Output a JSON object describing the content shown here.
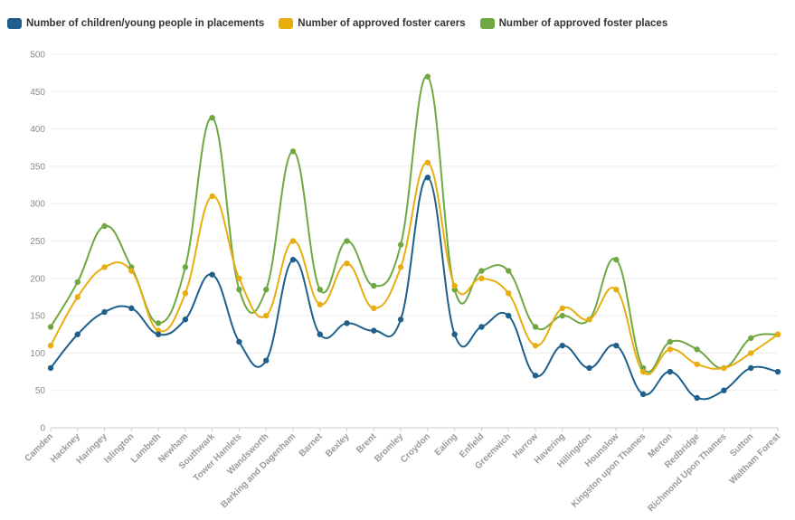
{
  "chart_data": {
    "type": "line",
    "title": "",
    "xlabel": "",
    "ylabel": "",
    "ylim": [
      0,
      500
    ],
    "yticks": [
      0,
      50,
      100,
      150,
      200,
      250,
      300,
      350,
      400,
      450,
      500
    ],
    "grid": true,
    "legend_position": "top-left",
    "categories": [
      "Camden",
      "Hackney",
      "Haringey",
      "Islington",
      "Lambeth",
      "Newham",
      "Southwark",
      "Tower Hamlets",
      "Wandsworth",
      "Barking and Dagenham",
      "Barnet",
      "Bexley",
      "Brent",
      "Bromley",
      "Croydon",
      "Ealing",
      "Enfield",
      "Greenwich",
      "Harrow",
      "Havering",
      "Hillingdon",
      "Hounslow",
      "Kingston upon Thames",
      "Merton",
      "Redbridge",
      "Richmond Upon Thames",
      "Sutton",
      "Waltham Forest"
    ],
    "series": [
      {
        "name": "Number of children/young people in placements",
        "color": "#1f5f8b",
        "values": [
          80,
          125,
          155,
          160,
          125,
          145,
          205,
          115,
          90,
          225,
          125,
          140,
          130,
          145,
          335,
          125,
          135,
          150,
          70,
          110,
          80,
          110,
          45,
          75,
          40,
          50,
          80,
          75
        ]
      },
      {
        "name": "Number of approved foster carers",
        "color": "#e8ae0f",
        "values": [
          110,
          175,
          215,
          210,
          130,
          180,
          310,
          200,
          150,
          250,
          165,
          220,
          160,
          215,
          355,
          190,
          200,
          180,
          110,
          160,
          145,
          185,
          75,
          105,
          85,
          80,
          100,
          125
        ]
      },
      {
        "name": "Number of approved foster places",
        "color": "#6fa843",
        "values": [
          135,
          195,
          270,
          215,
          140,
          215,
          415,
          185,
          185,
          370,
          185,
          250,
          190,
          245,
          470,
          185,
          210,
          210,
          135,
          150,
          145,
          225,
          80,
          115,
          105,
          80,
          120,
          125
        ]
      }
    ]
  }
}
